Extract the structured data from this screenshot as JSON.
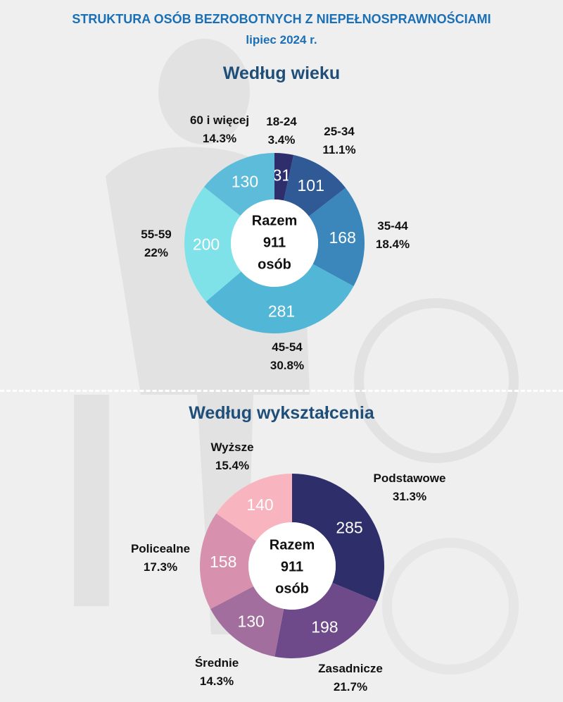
{
  "title": "STRUKTURA OSÓB BEZROBOTNYCH Z NIEPEŁNOSPRAWNOŚCIAMI",
  "subtitle": "lipiec 2024 r.",
  "chart_data": [
    {
      "type": "donut",
      "title": "Według wieku",
      "center": {
        "line1": "Razem",
        "line2": "911",
        "line3": "osób"
      },
      "categories": [
        "18-24",
        "25-34",
        "35-44",
        "45-54",
        "55-59",
        "60 i więcej"
      ],
      "values": [
        31,
        101,
        168,
        281,
        200,
        130
      ],
      "percents": [
        "3.4%",
        "11.1%",
        "18.4%",
        "30.8%",
        "22%",
        "14.3%"
      ],
      "colors": [
        "#2d2e6b",
        "#2f5a96",
        "#3b87bb",
        "#52b6d7",
        "#7ee2e8",
        "#5cbcda"
      ]
    },
    {
      "type": "donut",
      "title": "Według wykształcenia",
      "center": {
        "line1": "Razem",
        "line2": "911",
        "line3": "osób"
      },
      "categories": [
        "Podstawowe",
        "Zasadnicze",
        "Średnie",
        "Policealne",
        "Wyższe"
      ],
      "values": [
        285,
        198,
        130,
        158,
        140
      ],
      "percents": [
        "31.3%",
        "21.7%",
        "14.3%",
        "17.3%",
        "15.4%"
      ],
      "colors": [
        "#2e2f6a",
        "#6f4a8a",
        "#a26e9d",
        "#d790ad",
        "#f8b5bf"
      ]
    }
  ]
}
